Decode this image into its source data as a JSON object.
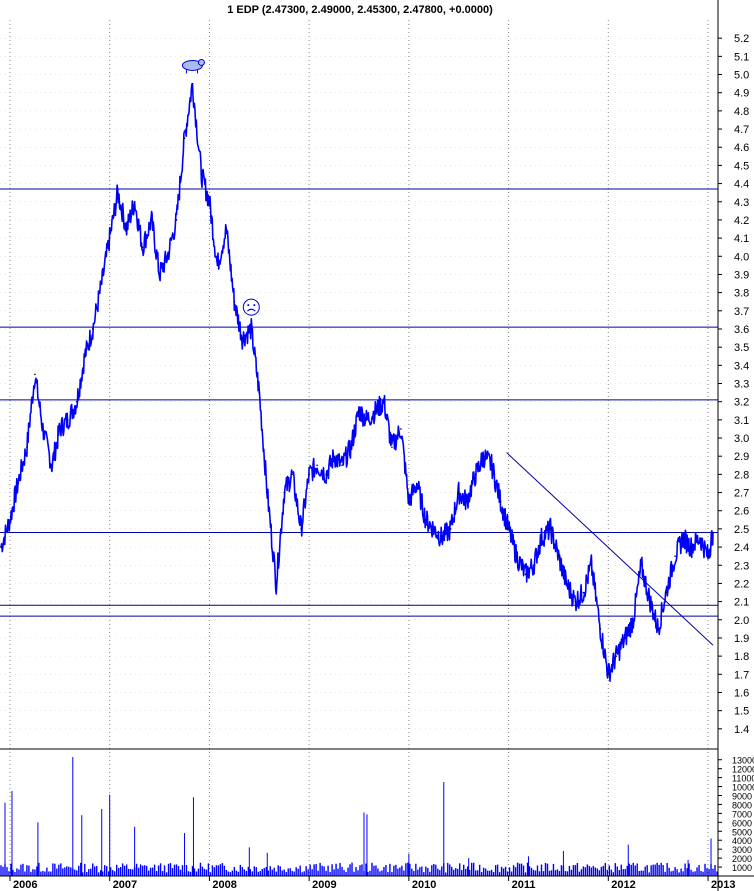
{
  "chart_data": {
    "type": "line",
    "title": "1 EDP (2.47300, 2.49000, 2.45300, 2.47800, +0.0000)",
    "price": {
      "ylim": [
        1.3,
        5.3
      ],
      "yticks": [
        1.4,
        1.5,
        1.6,
        1.7,
        1.8,
        1.9,
        2.0,
        2.1,
        2.2,
        2.3,
        2.4,
        2.5,
        2.6,
        2.7,
        2.8,
        2.9,
        3.0,
        3.1,
        3.2,
        3.3,
        3.4,
        3.5,
        3.6,
        3.7,
        3.8,
        3.9,
        4.0,
        4.1,
        4.2,
        4.3,
        4.4,
        4.5,
        4.6,
        4.7,
        4.8,
        4.9,
        5.0,
        5.1,
        5.2
      ],
      "series": [
        {
          "x": [
            2005.91,
            2006.0,
            2006.08,
            2006.17,
            2006.25,
            2006.33,
            2006.42,
            2006.5,
            2006.58,
            2006.67,
            2006.75,
            2006.83,
            2006.92,
            2007.0,
            2007.08,
            2007.17,
            2007.25,
            2007.33,
            2007.42,
            2007.5,
            2007.58,
            2007.67,
            2007.75,
            2007.83,
            2007.92,
            2008.0,
            2008.08,
            2008.17,
            2008.25,
            2008.33,
            2008.42,
            2008.5,
            2008.58,
            2008.67,
            2008.75,
            2008.83,
            2008.92,
            2009.0,
            2009.08,
            2009.17,
            2009.25,
            2009.33,
            2009.42,
            2009.5,
            2009.58,
            2009.67,
            2009.75,
            2009.83,
            2009.92,
            2010.0,
            2010.08,
            2010.17,
            2010.25,
            2010.33,
            2010.42,
            2010.5,
            2010.58,
            2010.67,
            2010.75,
            2010.83,
            2010.92,
            2011.0,
            2011.08,
            2011.17,
            2011.25,
            2011.33,
            2011.42,
            2011.5,
            2011.58,
            2011.67,
            2011.75,
            2011.83,
            2011.92,
            2012.0,
            2012.08,
            2012.17,
            2012.25,
            2012.33,
            2012.42,
            2012.5,
            2012.58,
            2012.67,
            2012.75,
            2012.83,
            2012.92,
            2013.0,
            2013.05
          ],
          "values": [
            2.4,
            2.55,
            2.75,
            2.95,
            3.35,
            3.05,
            2.85,
            3.05,
            3.1,
            3.2,
            3.45,
            3.6,
            3.85,
            4.1,
            4.35,
            4.15,
            4.3,
            4.05,
            4.2,
            3.9,
            4.0,
            4.2,
            4.65,
            4.95,
            4.45,
            4.3,
            3.95,
            4.15,
            3.75,
            3.55,
            3.6,
            3.25,
            2.7,
            2.2,
            2.7,
            2.8,
            2.5,
            2.8,
            2.85,
            2.8,
            2.9,
            2.85,
            2.95,
            3.15,
            3.1,
            3.15,
            3.2,
            2.95,
            3.05,
            2.65,
            2.75,
            2.55,
            2.5,
            2.45,
            2.5,
            2.7,
            2.65,
            2.8,
            2.9,
            2.85,
            2.65,
            2.5,
            2.35,
            2.25,
            2.3,
            2.45,
            2.5,
            2.35,
            2.2,
            2.1,
            2.15,
            2.3,
            1.95,
            1.7,
            1.8,
            1.9,
            2.0,
            2.3,
            2.1,
            1.95,
            2.15,
            2.35,
            2.45,
            2.4,
            2.45,
            2.35,
            2.48
          ]
        }
      ],
      "hlines": [
        4.37,
        3.61,
        3.21,
        2.48,
        2.08,
        2.02
      ],
      "trendline": {
        "x": [
          2010.98,
          2013.05
        ],
        "y": [
          2.92,
          1.86
        ]
      },
      "markers": [
        {
          "x": 2007.83,
          "y": 5.05,
          "icon": "bear-icon"
        },
        {
          "x": 2008.42,
          "y": 3.72,
          "icon": "sad-face-icon"
        }
      ]
    },
    "volume": {
      "yticks": [
        1000,
        2000,
        3000,
        4000,
        5000,
        6000,
        7000,
        8000,
        9000,
        10000,
        11000,
        12000,
        13000
      ],
      "ylim": [
        0,
        14200
      ],
      "spikes": [
        {
          "x": 2005.95,
          "value": 8200
        },
        {
          "x": 2006.02,
          "value": 9500
        },
        {
          "x": 2006.28,
          "value": 6000
        },
        {
          "x": 2006.63,
          "value": 13300
        },
        {
          "x": 2006.72,
          "value": 6800
        },
        {
          "x": 2006.92,
          "value": 7500
        },
        {
          "x": 2007.0,
          "value": 9100
        },
        {
          "x": 2007.25,
          "value": 5500
        },
        {
          "x": 2007.75,
          "value": 4800
        },
        {
          "x": 2007.84,
          "value": 8800
        },
        {
          "x": 2008.4,
          "value": 3200
        },
        {
          "x": 2008.58,
          "value": 2600
        },
        {
          "x": 2009.55,
          "value": 7100
        },
        {
          "x": 2009.58,
          "value": 6900
        },
        {
          "x": 2010.0,
          "value": 2500
        },
        {
          "x": 2010.35,
          "value": 10500
        },
        {
          "x": 2010.6,
          "value": 2000
        },
        {
          "x": 2011.2,
          "value": 2200
        },
        {
          "x": 2011.55,
          "value": 2800
        },
        {
          "x": 2012.2,
          "value": 3500
        },
        {
          "x": 2012.8,
          "value": 1800
        },
        {
          "x": 2013.03,
          "value": 4200
        }
      ]
    },
    "x_ticks": [
      {
        "x": 2006.0,
        "label": "2006"
      },
      {
        "x": 2007.0,
        "label": "2007"
      },
      {
        "x": 2008.0,
        "label": "2008"
      },
      {
        "x": 2009.0,
        "label": "2009"
      },
      {
        "x": 2010.0,
        "label": "2010"
      },
      {
        "x": 2011.0,
        "label": "2011"
      },
      {
        "x": 2012.0,
        "label": "2012"
      },
      {
        "x": 2013.0,
        "label": "2013"
      }
    ],
    "xlim": [
      2005.9,
      2013.1
    ],
    "colors": {
      "line": "#0000ff",
      "hline": "#0000aa",
      "volume": "#0000ff",
      "grid": "#888888"
    },
    "grid": true
  }
}
